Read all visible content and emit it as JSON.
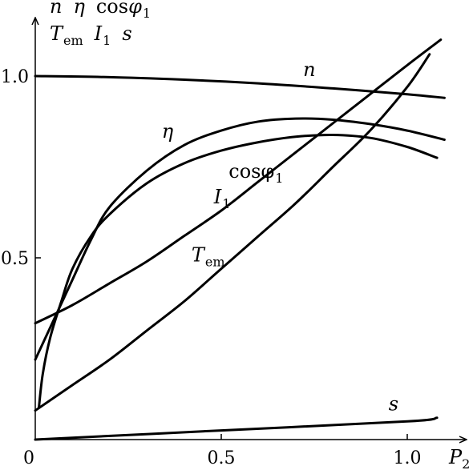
{
  "chart_data": {
    "type": "line",
    "title": "",
    "xlabel": "P",
    "xlabel_sub": "2",
    "ylabel_lines": [
      [
        {
          "t": "n",
          "i": true,
          "sub": ""
        },
        {
          "t": "η",
          "i": true,
          "sub": ""
        },
        {
          "t": "cos",
          "i": false,
          "sub": ""
        },
        {
          "t": "φ",
          "i": true,
          "sub": "1"
        }
      ],
      [
        {
          "t": "T",
          "i": true,
          "sub": "em"
        },
        {
          "t": "I",
          "i": true,
          "sub": "1"
        },
        {
          "t": "s",
          "i": true,
          "sub": ""
        }
      ]
    ],
    "xlim": [
      0,
      1.15
    ],
    "ylim": [
      0,
      1.1
    ],
    "origin_label": "0",
    "x_ticks": [
      {
        "value": 0.5,
        "label": "0.5"
      },
      {
        "value": 1.0,
        "label": "1.0"
      }
    ],
    "y_ticks": [
      {
        "value": 0.5,
        "label": "0.5"
      },
      {
        "value": 1.0,
        "label": "1.0"
      }
    ],
    "grid": false,
    "legend": "none",
    "series": [
      {
        "name": "n",
        "label_main": "n",
        "label_sub": "",
        "label_italic": true,
        "label_at": [
          0.72,
          1.0
        ],
        "points": [
          [
            0.0,
            1.0
          ],
          [
            0.2,
            0.997
          ],
          [
            0.4,
            0.99
          ],
          [
            0.6,
            0.98
          ],
          [
            0.8,
            0.966
          ],
          [
            1.0,
            0.95
          ],
          [
            1.1,
            0.94
          ]
        ]
      },
      {
        "name": "η",
        "label_main": "η",
        "label_sub": "",
        "label_italic": true,
        "label_at": [
          0.34,
          0.83
        ],
        "points": [
          [
            0.0,
            0.22
          ],
          [
            0.05,
            0.33
          ],
          [
            0.1,
            0.44
          ],
          [
            0.15,
            0.55
          ],
          [
            0.2,
            0.64
          ],
          [
            0.3,
            0.74
          ],
          [
            0.4,
            0.81
          ],
          [
            0.5,
            0.85
          ],
          [
            0.6,
            0.875
          ],
          [
            0.7,
            0.883
          ],
          [
            0.8,
            0.88
          ],
          [
            0.9,
            0.868
          ],
          [
            1.0,
            0.85
          ],
          [
            1.1,
            0.825
          ]
        ]
      },
      {
        "name": "cosφ1",
        "label_main": "cosφ",
        "label_sub": "1",
        "label_italic": false,
        "label_at": [
          0.52,
          0.72
        ],
        "points": [
          [
            0.01,
            0.09
          ],
          [
            0.02,
            0.18
          ],
          [
            0.04,
            0.28
          ],
          [
            0.07,
            0.38
          ],
          [
            0.1,
            0.47
          ],
          [
            0.15,
            0.56
          ],
          [
            0.2,
            0.62
          ],
          [
            0.3,
            0.705
          ],
          [
            0.4,
            0.76
          ],
          [
            0.5,
            0.795
          ],
          [
            0.6,
            0.818
          ],
          [
            0.7,
            0.833
          ],
          [
            0.8,
            0.838
          ],
          [
            0.9,
            0.83
          ],
          [
            1.0,
            0.805
          ],
          [
            1.08,
            0.775
          ]
        ]
      },
      {
        "name": "I1",
        "label_main": "I",
        "label_sub": "1",
        "label_italic": true,
        "label_at": [
          0.48,
          0.65
        ],
        "points": [
          [
            0.0,
            0.32
          ],
          [
            0.1,
            0.37
          ],
          [
            0.2,
            0.43
          ],
          [
            0.3,
            0.49
          ],
          [
            0.4,
            0.56
          ],
          [
            0.5,
            0.63
          ],
          [
            0.6,
            0.71
          ],
          [
            0.7,
            0.79
          ],
          [
            0.8,
            0.87
          ],
          [
            0.9,
            0.95
          ],
          [
            1.0,
            1.03
          ],
          [
            1.09,
            1.1
          ]
        ]
      },
      {
        "name": "Tem",
        "label_main": "T",
        "label_sub": "em",
        "label_italic": true,
        "label_at": [
          0.42,
          0.49
        ],
        "points": [
          [
            0.0,
            0.08
          ],
          [
            0.1,
            0.15
          ],
          [
            0.2,
            0.22
          ],
          [
            0.3,
            0.3
          ],
          [
            0.4,
            0.38
          ],
          [
            0.5,
            0.47
          ],
          [
            0.6,
            0.56
          ],
          [
            0.7,
            0.65
          ],
          [
            0.8,
            0.75
          ],
          [
            0.9,
            0.85
          ],
          [
            1.0,
            0.97
          ],
          [
            1.06,
            1.06
          ]
        ]
      },
      {
        "name": "s",
        "label_main": "s",
        "label_sub": "",
        "label_italic": true,
        "label_at": [
          0.95,
          0.08
        ],
        "points": [
          [
            0.0,
            0.0
          ],
          [
            0.5,
            0.025
          ],
          [
            1.0,
            0.05
          ],
          [
            1.08,
            0.06
          ]
        ]
      }
    ]
  }
}
